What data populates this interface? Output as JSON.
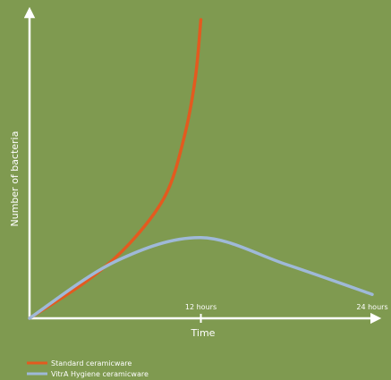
{
  "colors": {
    "background": "#7f9a50",
    "axis": "#ffffff",
    "standard_series": "#e35a1f",
    "vitra_series": "#9fb9d8"
  },
  "chart_data": {
    "type": "line",
    "title": "",
    "xlabel": "Time",
    "ylabel": "Number of bacteria",
    "xlim": [
      0,
      24
    ],
    "x_tick_labels": [
      {
        "x": 12,
        "label": "12 hours"
      },
      {
        "x": 24,
        "label": "24 hours"
      }
    ],
    "grid": false,
    "legend_position": "bottom-left",
    "series": [
      {
        "name": "Standard ceramicware",
        "color": "#e35a1f",
        "points": [
          [
            0,
            0
          ],
          [
            4,
            0.125
          ],
          [
            7,
            0.25
          ],
          [
            9.5,
            0.41
          ],
          [
            10.8,
            0.6
          ],
          [
            11.6,
            0.8
          ],
          [
            12,
            1.0
          ]
        ]
      },
      {
        "name": "VitrA Hygiene ceramicware",
        "color": "#9fb9d8",
        "points": [
          [
            0,
            0
          ],
          [
            6,
            0.19
          ],
          [
            12,
            0.27
          ],
          [
            18,
            0.18
          ],
          [
            24,
            0.08
          ]
        ]
      }
    ]
  }
}
